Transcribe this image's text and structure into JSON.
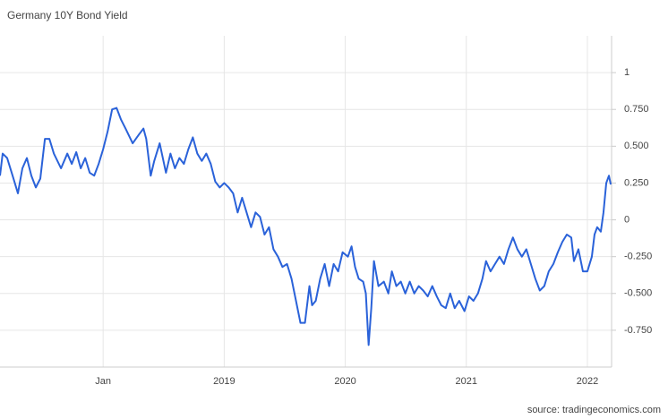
{
  "chart_data": {
    "type": "line",
    "title": "Germany 10Y Bond Yield",
    "source": "source: tradingeconomics.com",
    "x": [
      2017.148,
      2017.17,
      2017.207,
      2017.252,
      2017.296,
      2017.333,
      2017.37,
      2017.407,
      2017.444,
      2017.481,
      2017.519,
      2017.556,
      2017.593,
      2017.652,
      2017.704,
      2017.741,
      2017.778,
      2017.815,
      2017.852,
      2017.889,
      2017.926,
      2017.963,
      2018.0,
      2018.037,
      2018.074,
      2018.111,
      2018.148,
      2018.185,
      2018.244,
      2018.296,
      2018.333,
      2018.356,
      2018.393,
      2018.422,
      2018.467,
      2018.519,
      2018.556,
      2018.593,
      2018.63,
      2018.667,
      2018.704,
      2018.741,
      2018.778,
      2018.815,
      2018.852,
      2018.889,
      2018.926,
      2018.963,
      2019.0,
      2019.037,
      2019.074,
      2019.111,
      2019.148,
      2019.185,
      2019.222,
      2019.259,
      2019.296,
      2019.333,
      2019.37,
      2019.407,
      2019.444,
      2019.481,
      2019.519,
      2019.556,
      2019.593,
      2019.63,
      2019.667,
      2019.704,
      2019.726,
      2019.756,
      2019.793,
      2019.83,
      2019.867,
      2019.904,
      2019.941,
      2019.978,
      2020.022,
      2020.052,
      2020.081,
      2020.111,
      2020.148,
      2020.17,
      2020.193,
      2020.215,
      2020.237,
      2020.274,
      2020.319,
      2020.356,
      2020.385,
      2020.422,
      2020.459,
      2020.496,
      2020.533,
      2020.57,
      2020.607,
      2020.644,
      2020.681,
      2020.719,
      2020.756,
      2020.793,
      2020.83,
      2020.867,
      2020.904,
      2020.941,
      2020.985,
      2021.022,
      2021.059,
      2021.096,
      2021.133,
      2021.163,
      2021.2,
      2021.237,
      2021.274,
      2021.311,
      2021.348,
      2021.385,
      2021.422,
      2021.459,
      2021.496,
      2021.533,
      2021.57,
      2021.607,
      2021.644,
      2021.681,
      2021.719,
      2021.756,
      2021.793,
      2021.83,
      2021.867,
      2021.889,
      2021.926,
      2021.963,
      2022.0,
      2022.037,
      2022.059,
      2022.081,
      2022.111,
      2022.133,
      2022.156,
      2022.178,
      2022.193
    ],
    "series": [
      {
        "color": "#2a62d9",
        "values": [
          0.3,
          0.45,
          0.42,
          0.3,
          0.18,
          0.35,
          0.42,
          0.3,
          0.22,
          0.28,
          0.55,
          0.55,
          0.45,
          0.35,
          0.45,
          0.38,
          0.46,
          0.35,
          0.42,
          0.32,
          0.3,
          0.38,
          0.48,
          0.6,
          0.75,
          0.76,
          0.68,
          0.62,
          0.52,
          0.58,
          0.62,
          0.55,
          0.3,
          0.4,
          0.52,
          0.32,
          0.45,
          0.35,
          0.42,
          0.38,
          0.48,
          0.56,
          0.45,
          0.4,
          0.45,
          0.38,
          0.26,
          0.22,
          0.25,
          0.22,
          0.18,
          0.05,
          0.15,
          0.05,
          -0.05,
          0.05,
          0.02,
          -0.1,
          -0.05,
          -0.2,
          -0.25,
          -0.32,
          -0.3,
          -0.4,
          -0.55,
          -0.7,
          -0.7,
          -0.45,
          -0.58,
          -0.55,
          -0.4,
          -0.3,
          -0.45,
          -0.3,
          -0.35,
          -0.22,
          -0.25,
          -0.18,
          -0.32,
          -0.4,
          -0.42,
          -0.5,
          -0.85,
          -0.6,
          -0.28,
          -0.45,
          -0.42,
          -0.5,
          -0.35,
          -0.45,
          -0.42,
          -0.5,
          -0.42,
          -0.5,
          -0.45,
          -0.48,
          -0.52,
          -0.45,
          -0.52,
          -0.58,
          -0.6,
          -0.5,
          -0.6,
          -0.55,
          -0.62,
          -0.52,
          -0.55,
          -0.5,
          -0.4,
          -0.28,
          -0.35,
          -0.3,
          -0.25,
          -0.3,
          -0.2,
          -0.12,
          -0.2,
          -0.25,
          -0.2,
          -0.3,
          -0.4,
          -0.48,
          -0.45,
          -0.35,
          -0.3,
          -0.22,
          -0.15,
          -0.1,
          -0.12,
          -0.28,
          -0.2,
          -0.35,
          -0.35,
          -0.25,
          -0.1,
          -0.05,
          -0.08,
          0.05,
          0.25,
          0.3,
          0.24
        ]
      }
    ],
    "xlim": [
      2017.148,
      2022.2
    ],
    "xticks": [
      {
        "value": 2018,
        "label": "Jan"
      },
      2019,
      2020,
      2021,
      2022
    ],
    "ylim": [
      -1,
      1.25
    ],
    "yticks": [
      1,
      {
        "value": 0.75,
        "label": "0.750"
      },
      {
        "value": 0.5,
        "label": "0.500"
      },
      {
        "value": 0.25,
        "label": "0.250"
      },
      0,
      {
        "value": -0.25,
        "label": "-0.250"
      },
      {
        "value": -0.5,
        "label": "-0.500"
      },
      {
        "value": -0.75,
        "label": "-0.750"
      }
    ],
    "grid": true
  }
}
